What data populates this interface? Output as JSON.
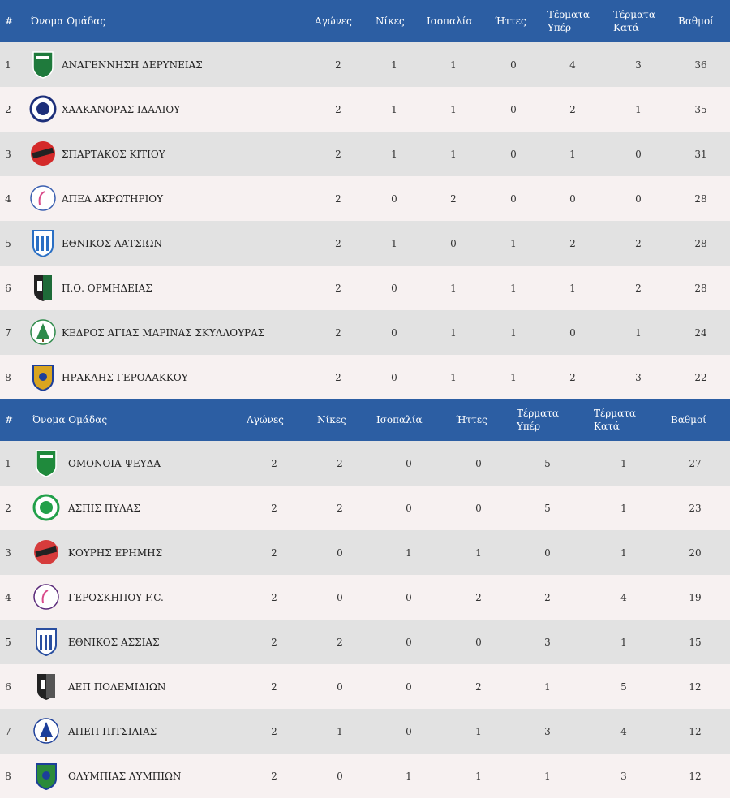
{
  "headers": {
    "rank": "#",
    "team": "Όνομα Ομάδας",
    "played": "Αγώνες",
    "wins": "Νίκες",
    "draws": "Ισοπαλία",
    "losses": "Ήττες",
    "goals_for": "Τέρματα Υπέρ",
    "goals_against": "Τέρματα Κατά",
    "points": "Βαθμοί"
  },
  "group1": [
    {
      "pos": "1",
      "team": "ΑΝΑΓΕΝΝΗΣΗ ΔΕΡΥΝΕΙΑΣ",
      "played": "2",
      "wins": "1",
      "draws": "1",
      "losses": "0",
      "gf": "4",
      "ga": "3",
      "pts": "36",
      "logo": "anagennisi-deryneias-crest",
      "color": "#1f7a3c"
    },
    {
      "pos": "2",
      "team": "ΧΑΛΚΑΝΟΡΑΣ ΙΔΑΛΙΟΥ",
      "played": "2",
      "wins": "1",
      "draws": "1",
      "losses": "0",
      "gf": "2",
      "ga": "1",
      "pts": "35",
      "logo": "chalkanoras-idaliou-crest",
      "color": "#1d2f7a"
    },
    {
      "pos": "3",
      "team": "ΣΠΑΡΤΑΚΟΣ ΚΙΤΙΟΥ",
      "played": "2",
      "wins": "1",
      "draws": "1",
      "losses": "0",
      "gf": "1",
      "ga": "0",
      "pts": "31",
      "logo": "spartakos-kitiou-crest",
      "color": "#d42a2a"
    },
    {
      "pos": "4",
      "team": "ΑΠΕΑ ΑΚΡΩΤΗΡΙΟΥ",
      "played": "2",
      "wins": "0",
      "draws": "2",
      "losses": "0",
      "gf": "0",
      "ga": "0",
      "pts": "28",
      "logo": "apea-akrotiriou-crest",
      "color": "#3a5fb0"
    },
    {
      "pos": "5",
      "team": "ΕΘΝΙΚΟΣ ΛΑΤΣΙΩΝ",
      "played": "2",
      "wins": "1",
      "draws": "0",
      "losses": "1",
      "gf": "2",
      "ga": "2",
      "pts": "28",
      "logo": "ethnikos-latsion-crest",
      "color": "#2a6fc4"
    },
    {
      "pos": "6",
      "team": "Π.Ο. ΟΡΜΗΔΕΙΑΣ",
      "played": "2",
      "wins": "0",
      "draws": "1",
      "losses": "1",
      "gf": "1",
      "ga": "2",
      "pts": "28",
      "logo": "po-ormideias-crest",
      "color": "#1e6b38"
    },
    {
      "pos": "7",
      "team": "ΚΕΔΡΟΣ ΑΓΙΑΣ ΜΑΡΙΝΑΣ ΣΚΥΛΛΟΥΡΑΣ",
      "played": "2",
      "wins": "0",
      "draws": "1",
      "losses": "1",
      "gf": "0",
      "ga": "1",
      "pts": "24",
      "logo": "kedros-crest",
      "color": "#2d8a4a"
    },
    {
      "pos": "8",
      "team": "ΗΡΑΚΛΗΣ ΓΕΡΟΛΑΚΚΟΥ",
      "played": "2",
      "wins": "0",
      "draws": "1",
      "losses": "1",
      "gf": "2",
      "ga": "3",
      "pts": "22",
      "logo": "iraklis-gerolakkou-crest",
      "color": "#d9a520"
    }
  ],
  "group2": [
    {
      "pos": "1",
      "team": "ΟΜΟΝΟΙΑ ΨΕΥΔΑ",
      "played": "2",
      "wins": "2",
      "draws": "0",
      "losses": "0",
      "gf": "5",
      "ga": "1",
      "pts": "27",
      "logo": "omonoia-psevda-crest",
      "color": "#1f8a3c"
    },
    {
      "pos": "2",
      "team": "ΑΣΠΙΣ ΠΥΛΑΣ",
      "played": "2",
      "wins": "2",
      "draws": "0",
      "losses": "0",
      "gf": "5",
      "ga": "1",
      "pts": "23",
      "logo": "aspis-pylas-crest",
      "color": "#22a04a"
    },
    {
      "pos": "3",
      "team": "ΚΟΥΡΗΣ ΕΡΗΜΗΣ",
      "played": "2",
      "wins": "0",
      "draws": "1",
      "losses": "1",
      "gf": "0",
      "ga": "1",
      "pts": "20",
      "logo": "kouris-erimis-crest",
      "color": "#d63c3c"
    },
    {
      "pos": "4",
      "team": "ΓΕΡΟΣΚΗΠΟΥ F.C.",
      "played": "2",
      "wins": "0",
      "draws": "0",
      "losses": "2",
      "gf": "2",
      "ga": "4",
      "pts": "19",
      "logo": "geroskipou-crest",
      "color": "#5a2a7a"
    },
    {
      "pos": "5",
      "team": "ΕΘΝΙΚΟΣ ΑΣΣΙΑΣ",
      "played": "2",
      "wins": "2",
      "draws": "0",
      "losses": "0",
      "gf": "3",
      "ga": "1",
      "pts": "15",
      "logo": "ethnikos-assias-crest",
      "color": "#2a4fa0"
    },
    {
      "pos": "6",
      "team": "ΑΕΠ ΠΟΛΕΜΙΔΙΩΝ",
      "played": "2",
      "wins": "0",
      "draws": "0",
      "losses": "2",
      "gf": "1",
      "ga": "5",
      "pts": "12",
      "logo": "aep-polemidion-crest",
      "color": "#555555"
    },
    {
      "pos": "7",
      "team": "ΑΠΕΠ ΠΙΤΣΙΛΙΑΣ",
      "played": "2",
      "wins": "1",
      "draws": "0",
      "losses": "1",
      "gf": "3",
      "ga": "4",
      "pts": "12",
      "logo": "apep-pitsilias-crest",
      "color": "#1d3f9a"
    },
    {
      "pos": "8",
      "team": "ΟΛΥΜΠΙΑΣ ΛΥΜΠΙΩΝ",
      "played": "2",
      "wins": "0",
      "draws": "1",
      "losses": "1",
      "gf": "1",
      "ga": "3",
      "pts": "12",
      "logo": "olympias-lympion-crest",
      "color": "#2a8a3a"
    }
  ]
}
